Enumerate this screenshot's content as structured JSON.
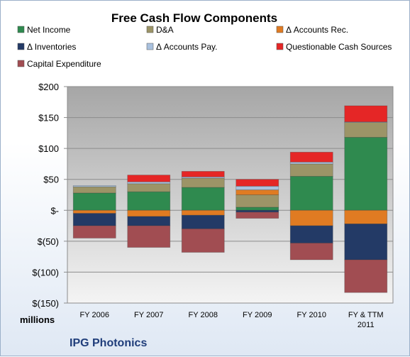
{
  "chart_data": {
    "type": "bar",
    "stacked": true,
    "title": "Free Cash Flow Components",
    "ylabel_units": "millions",
    "company": "IPG Photonics",
    "ylim": [
      -150,
      200
    ],
    "yticks": [
      200,
      150,
      100,
      50,
      0,
      -50,
      -100,
      -150
    ],
    "ytick_labels": [
      "$200",
      "$150",
      "$100",
      "$50",
      "$-",
      "$(50)",
      "$(100)",
      "$(150)"
    ],
    "categories": [
      "FY 2006",
      "FY 2007",
      "FY 2008",
      "FY 2009",
      "FY 2010",
      "FY & TTM 2011"
    ],
    "category_lines": [
      [
        "FY 2006"
      ],
      [
        "FY 2007"
      ],
      [
        "FY 2008"
      ],
      [
        "FY 2009"
      ],
      [
        "FY 2010"
      ],
      [
        "FY & TTM",
        "2011"
      ]
    ],
    "grid": true,
    "legend_position": "top",
    "series": [
      {
        "name": "Net Income",
        "color": "#2f8a4f",
        "values": [
          28,
          30,
          37,
          5,
          55,
          118
        ]
      },
      {
        "name": "D&A",
        "color": "#9c9467",
        "values": [
          10,
          13,
          15,
          20,
          20,
          24
        ]
      },
      {
        "name": "Δ Accounts Rec.",
        "color": "#e07b22",
        "values": [
          -5,
          -10,
          -8,
          8,
          -25,
          -22
        ]
      },
      {
        "name": "Δ Inventories",
        "color": "#233a66",
        "values": [
          -20,
          -15,
          -22,
          -3,
          -28,
          -58
        ]
      },
      {
        "name": "Δ Accounts Pay.",
        "color": "#a9c1de",
        "values": [
          2,
          3,
          2,
          6,
          3,
          1
        ]
      },
      {
        "name": "Questionable Cash Sources",
        "color": "#e52626",
        "values": [
          0,
          11,
          9,
          11,
          16,
          26
        ]
      },
      {
        "name": "Capital Expenditure",
        "color": "#a14d52",
        "values": [
          -20,
          -35,
          -38,
          -10,
          -27,
          -53
        ]
      }
    ]
  }
}
